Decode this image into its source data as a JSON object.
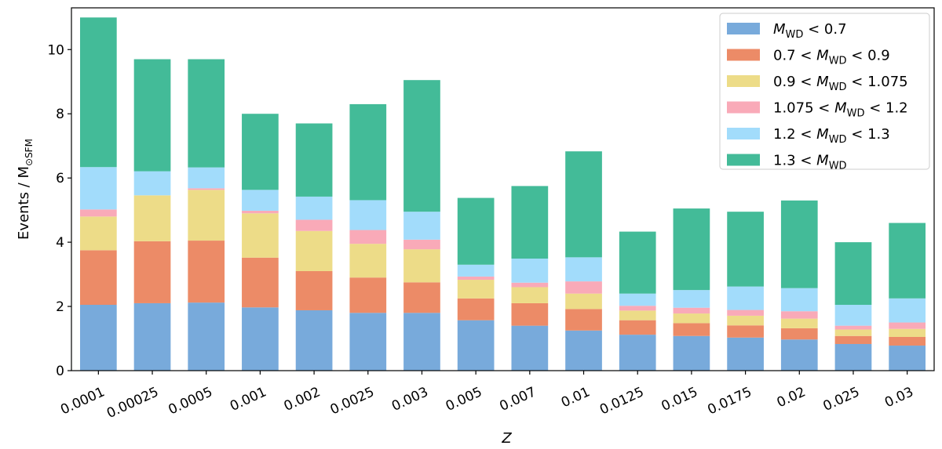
{
  "chart_data": {
    "type": "bar",
    "stacked": true,
    "xlabel": "Z",
    "ylabel": "Events / M",
    "ylabel_sub": "⊙SFM",
    "ylim": [
      0,
      11.3
    ],
    "yticks": [
      0,
      2,
      4,
      6,
      8,
      10
    ],
    "categories": [
      "0.0001",
      "0.00025",
      "0.0005",
      "0.001",
      "0.002",
      "0.0025",
      "0.003",
      "0.005",
      "0.007",
      "0.01",
      "0.0125",
      "0.015",
      "0.0175",
      "0.02",
      "0.025",
      "0.03"
    ],
    "legend_position": "top-right",
    "series": [
      {
        "name": "M_WD < 0.7",
        "legend": [
          {
            "t": "M",
            "i": true
          },
          {
            "t": "WD",
            "sub": true
          },
          {
            "t": " < 0.7"
          }
        ],
        "color": "#78aadb",
        "values": [
          2.05,
          2.1,
          2.12,
          1.97,
          1.88,
          1.8,
          1.8,
          1.57,
          1.4,
          1.25,
          1.12,
          1.08,
          1.03,
          0.97,
          0.83,
          0.78
        ]
      },
      {
        "name": "0.7 < M_WD < 0.9",
        "legend": [
          {
            "t": "0.7 < "
          },
          {
            "t": "M",
            "i": true
          },
          {
            "t": "WD",
            "sub": true
          },
          {
            "t": " < 0.9"
          }
        ],
        "color": "#ec8b67",
        "values": [
          1.7,
          1.93,
          1.93,
          1.55,
          1.22,
          1.1,
          0.95,
          0.68,
          0.7,
          0.67,
          0.45,
          0.4,
          0.38,
          0.35,
          0.25,
          0.27
        ]
      },
      {
        "name": "0.9 < M_WD < 1.075",
        "legend": [
          {
            "t": "0.9 < "
          },
          {
            "t": "M",
            "i": true
          },
          {
            "t": "WD",
            "sub": true
          },
          {
            "t": " < 1.075"
          }
        ],
        "color": "#eddc88",
        "values": [
          1.05,
          1.43,
          1.58,
          1.38,
          1.25,
          1.05,
          1.03,
          0.58,
          0.5,
          0.48,
          0.3,
          0.3,
          0.3,
          0.3,
          0.2,
          0.25
        ]
      },
      {
        "name": "1.075 < M_WD < 1.2",
        "legend": [
          {
            "t": "1.075 < "
          },
          {
            "t": "M",
            "i": true
          },
          {
            "t": "WD",
            "sub": true
          },
          {
            "t": " < 1.2"
          }
        ],
        "color": "#f9aab8",
        "values": [
          0.22,
          0.0,
          0.05,
          0.08,
          0.35,
          0.43,
          0.3,
          0.1,
          0.14,
          0.38,
          0.15,
          0.18,
          0.18,
          0.23,
          0.12,
          0.2
        ]
      },
      {
        "name": "1.2 < M_WD < 1.3",
        "legend": [
          {
            "t": "1.2 < "
          },
          {
            "t": "M",
            "i": true
          },
          {
            "t": "WD",
            "sub": true
          },
          {
            "t": " < 1.3"
          }
        ],
        "color": "#a2dcfb",
        "values": [
          1.32,
          0.75,
          0.65,
          0.65,
          0.72,
          0.93,
          0.87,
          0.37,
          0.75,
          0.75,
          0.38,
          0.55,
          0.73,
          0.72,
          0.65,
          0.75
        ]
      },
      {
        "name": "1.3 < M_WD",
        "legend": [
          {
            "t": "1.3 < "
          },
          {
            "t": "M",
            "i": true
          },
          {
            "t": "WD",
            "sub": true
          }
        ],
        "color": "#43bb98",
        "values": [
          4.66,
          3.49,
          3.37,
          2.37,
          2.28,
          2.99,
          4.1,
          2.08,
          2.26,
          3.3,
          1.93,
          2.54,
          2.33,
          2.73,
          1.95,
          2.35
        ]
      }
    ]
  }
}
